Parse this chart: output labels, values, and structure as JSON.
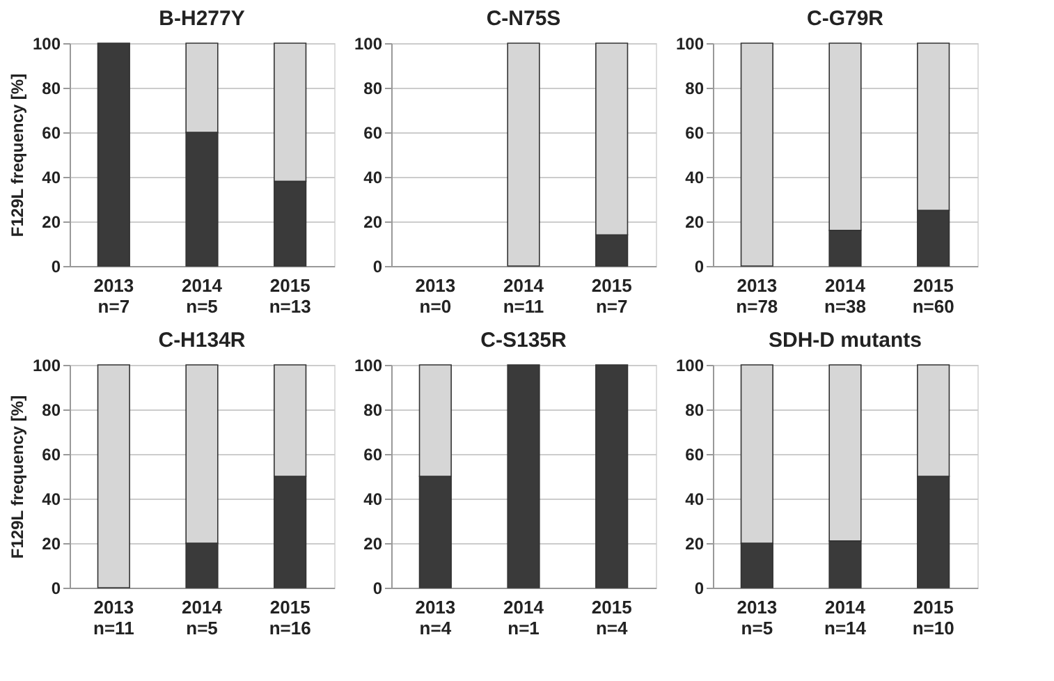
{
  "chart_data": [
    {
      "type": "bar",
      "title": "B-H277Y",
      "ylabel": "F129L frequency [%]",
      "categories": [
        "2013\nn=7",
        "2014\nn=5",
        "2015\nn=13"
      ],
      "stacked": true,
      "ylim": [
        0,
        100
      ],
      "yticks": [
        0,
        20,
        40,
        60,
        80,
        100
      ],
      "grid": "y",
      "legend": false,
      "series": [
        {
          "color": "#3a3a3a",
          "values": [
            100,
            60,
            38
          ]
        },
        {
          "color": "#d6d6d6",
          "values": [
            null,
            40,
            62
          ]
        }
      ]
    },
    {
      "type": "bar",
      "title": "C-N75S",
      "categories": [
        "2013\nn=0",
        "2014\nn=11",
        "2015\nn=7"
      ],
      "stacked": true,
      "ylim": [
        0,
        100
      ],
      "yticks": [
        0,
        20,
        40,
        60,
        80,
        100
      ],
      "grid": "y",
      "legend": false,
      "series": [
        {
          "color": "#3a3a3a",
          "values": [
            null,
            null,
            14
          ]
        },
        {
          "color": "#d6d6d6",
          "values": [
            null,
            100,
            86
          ]
        }
      ]
    },
    {
      "type": "bar",
      "title": "C-G79R",
      "categories": [
        "2013\nn=78",
        "2014\nn=38",
        "2015\nn=60"
      ],
      "stacked": true,
      "ylim": [
        0,
        100
      ],
      "yticks": [
        0,
        20,
        40,
        60,
        80,
        100
      ],
      "grid": "y",
      "legend": false,
      "series": [
        {
          "color": "#3a3a3a",
          "values": [
            null,
            16,
            25
          ]
        },
        {
          "color": "#d6d6d6",
          "values": [
            100,
            84,
            75
          ]
        }
      ]
    },
    {
      "type": "bar",
      "title": "C-H134R",
      "ylabel": "F129L frequency [%]",
      "categories": [
        "2013\nn=11",
        "2014\nn=5",
        "2015\nn=16"
      ],
      "stacked": true,
      "ylim": [
        0,
        100
      ],
      "yticks": [
        0,
        20,
        40,
        60,
        80,
        100
      ],
      "grid": "y",
      "legend": false,
      "series": [
        {
          "color": "#3a3a3a",
          "values": [
            null,
            20,
            50
          ]
        },
        {
          "color": "#d6d6d6",
          "values": [
            100,
            80,
            50
          ]
        }
      ]
    },
    {
      "type": "bar",
      "title": "C-S135R",
      "categories": [
        "2013\nn=4",
        "2014\nn=1",
        "2015\nn=4"
      ],
      "stacked": true,
      "ylim": [
        0,
        100
      ],
      "yticks": [
        0,
        20,
        40,
        60,
        80,
        100
      ],
      "grid": "y",
      "legend": false,
      "series": [
        {
          "color": "#3a3a3a",
          "values": [
            50,
            100,
            100
          ]
        },
        {
          "color": "#d6d6d6",
          "values": [
            50,
            null,
            null
          ]
        }
      ]
    },
    {
      "type": "bar",
      "title": "SDH-D mutants",
      "categories": [
        "2013\nn=5",
        "2014\nn=14",
        "2015\nn=10"
      ],
      "stacked": true,
      "ylim": [
        0,
        100
      ],
      "yticks": [
        0,
        20,
        40,
        60,
        80,
        100
      ],
      "grid": "y",
      "legend": false,
      "series": [
        {
          "color": "#3a3a3a",
          "values": [
            20,
            21,
            50
          ]
        },
        {
          "color": "#d6d6d6",
          "values": [
            80,
            79,
            50
          ]
        }
      ]
    }
  ]
}
